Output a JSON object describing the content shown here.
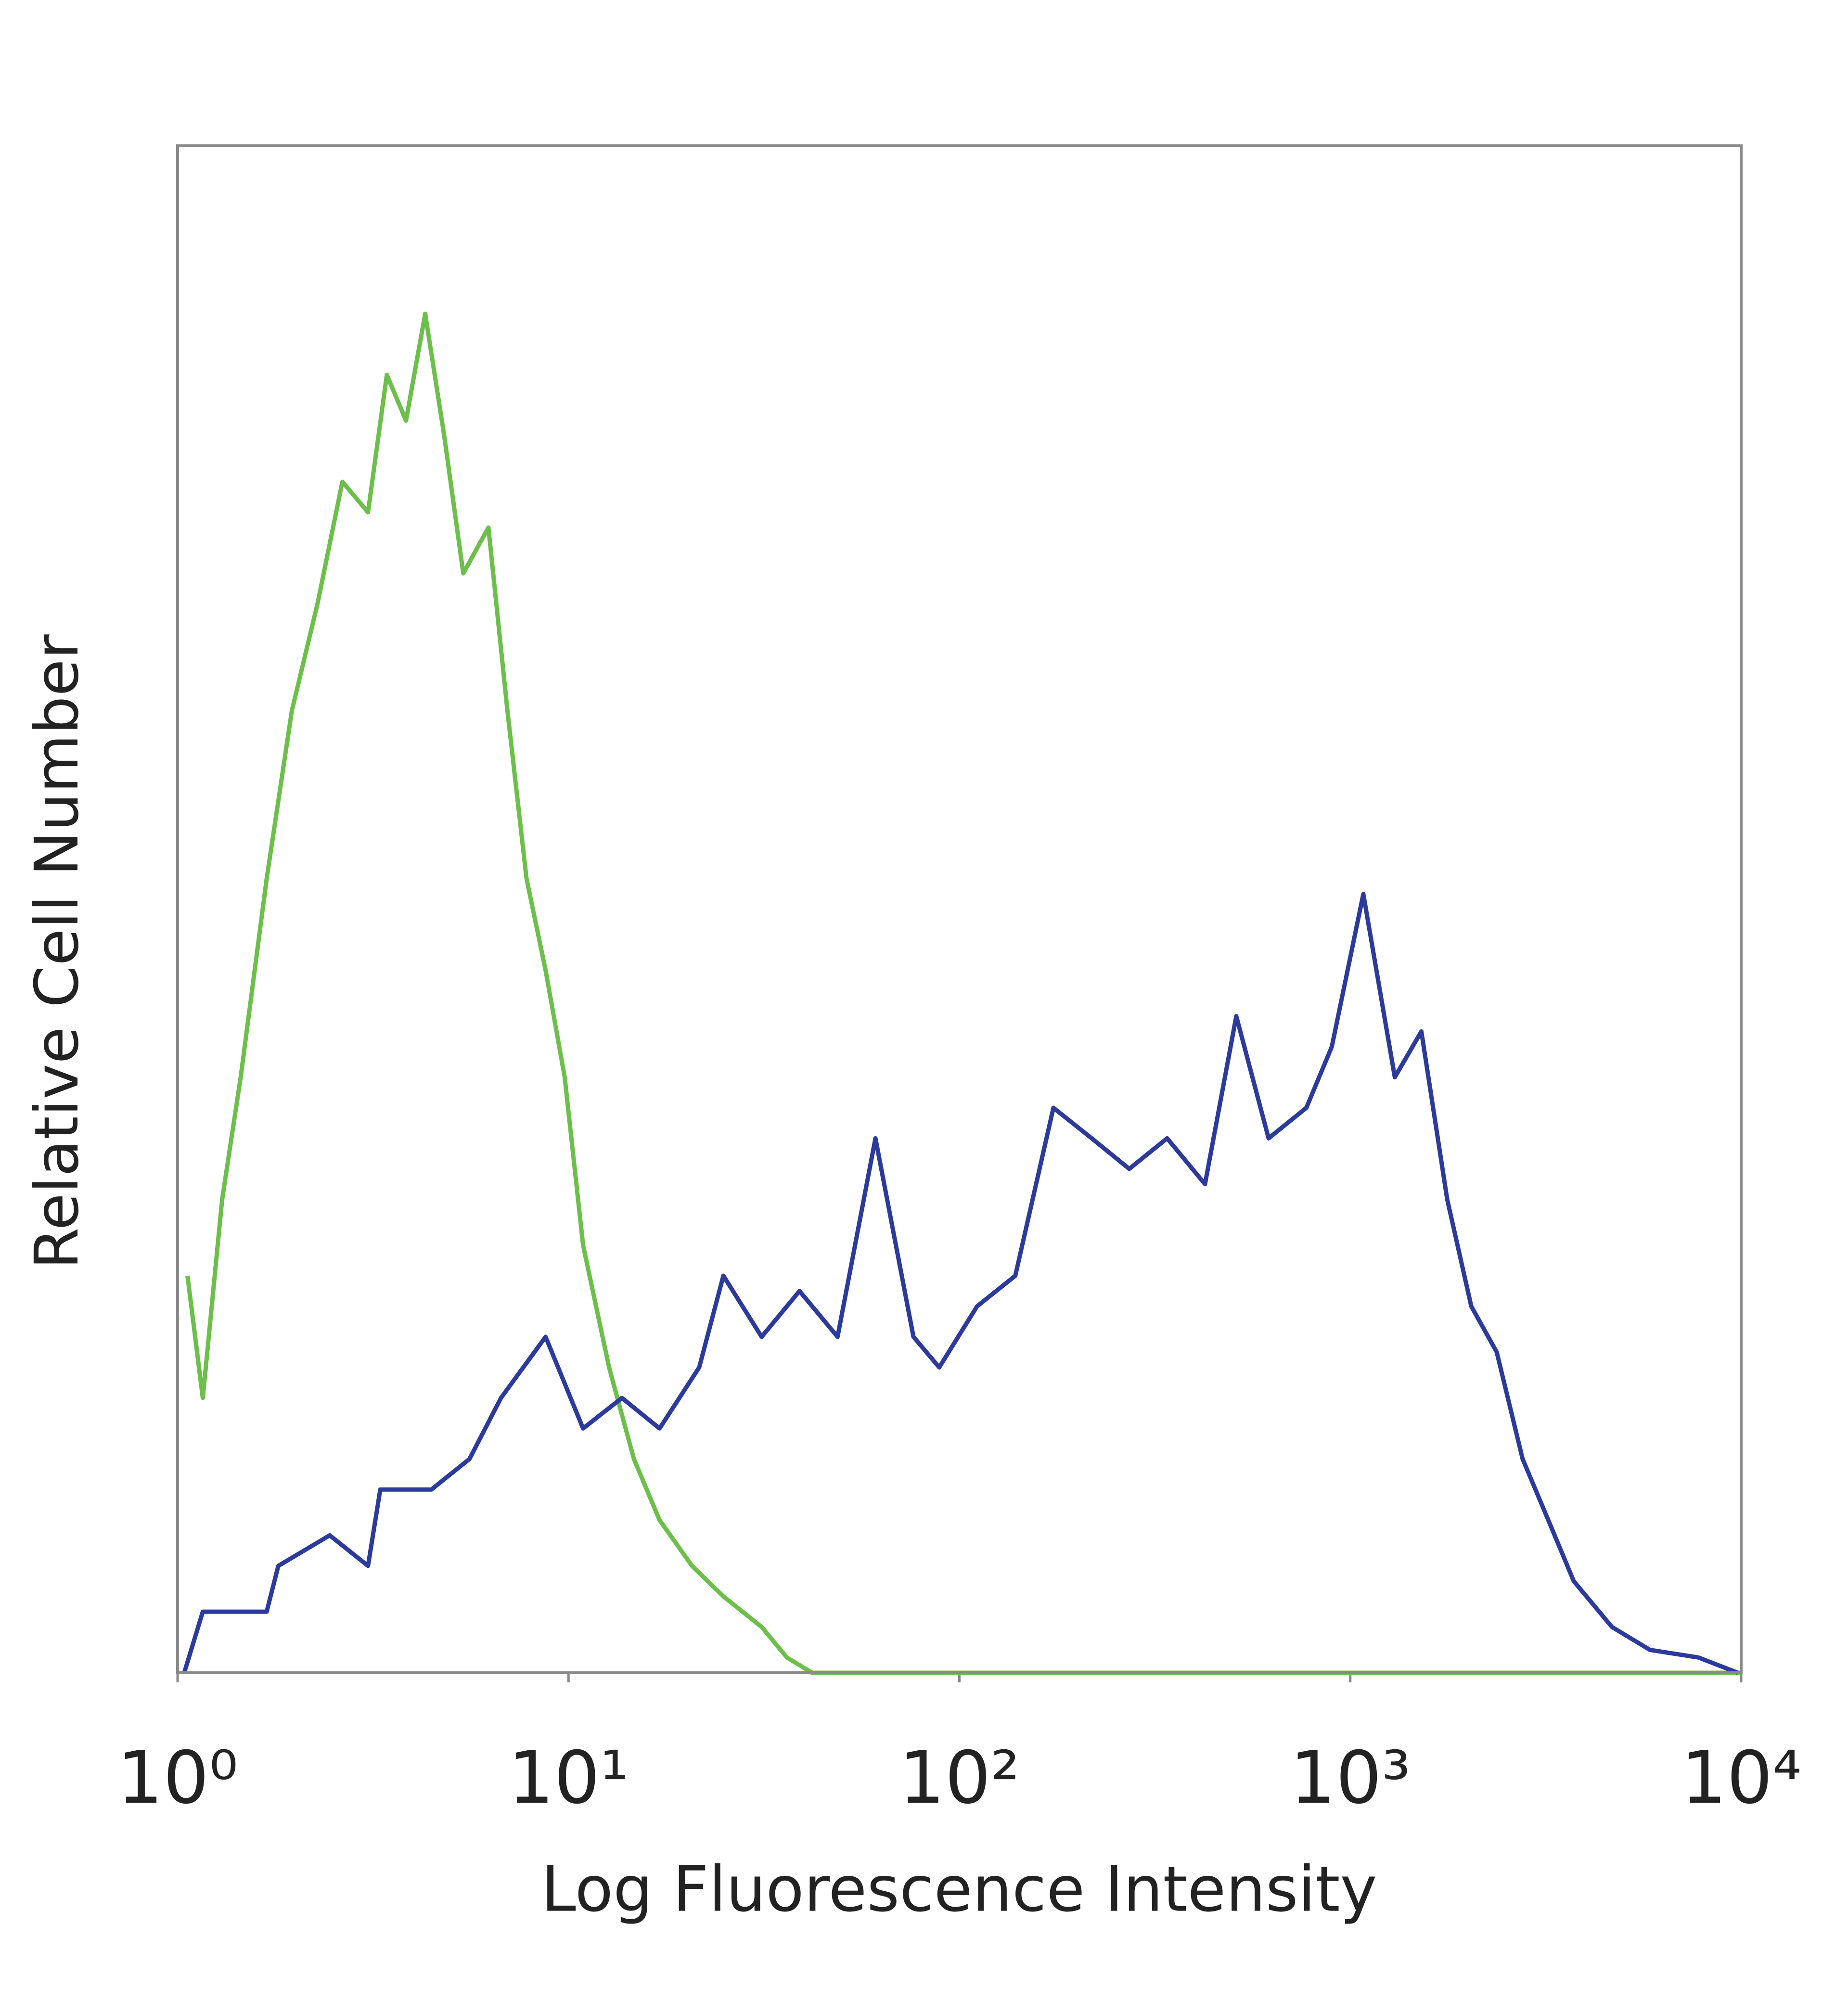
{
  "chart_data": {
    "type": "line",
    "x_label": "Log Fluorescence Intensity",
    "y_label": "Relative Cell Number",
    "log_x": true,
    "xlim": [
      1,
      10000
    ],
    "xticks": [
      {
        "value": 1,
        "label": "10⁰"
      },
      {
        "value": 10,
        "label": "10¹"
      },
      {
        "value": 100,
        "label": "10²"
      },
      {
        "value": 1000,
        "label": "10³"
      },
      {
        "value": 10000,
        "label": "10⁴"
      }
    ],
    "ylim": [
      0,
      100
    ],
    "series": [
      {
        "color": "#6cc04a",
        "x": [
          1.06,
          1.16,
          1.3,
          1.45,
          1.69,
          1.96,
          2.28,
          2.64,
          3.07,
          3.43,
          3.84,
          4.3,
          4.81,
          5.38,
          6.24,
          6.98,
          7.81,
          8.74,
          9.78,
          10.9,
          12.7,
          14.7,
          17.1,
          20.7,
          24.9,
          31.2,
          36.2,
          42,
          10000
        ],
        "values": [
          26,
          18,
          31,
          39,
          52,
          63,
          70,
          78,
          76,
          85,
          82,
          89,
          81,
          72,
          75,
          63,
          52,
          46,
          39,
          28,
          20,
          14,
          10,
          7,
          5,
          3,
          1,
          0,
          0
        ]
      },
      {
        "color": "#2b3a9c",
        "x": [
          1.04,
          1.16,
          1.69,
          1.81,
          2.45,
          3.07,
          3.3,
          4.46,
          5.58,
          6.72,
          8.74,
          10.9,
          13.7,
          17.1,
          21.6,
          24.9,
          31.2,
          39,
          48.8,
          61,
          76.3,
          88.8,
          111,
          139,
          174,
          218,
          272,
          340,
          425,
          511,
          618,
          772,
          897,
          1080,
          1300,
          1520,
          1770,
          2040,
          2370,
          2760,
          3210,
          3730,
          4670,
          5840,
          7780,
          9800
        ],
        "values": [
          0,
          4,
          4,
          7,
          9,
          7,
          12,
          12,
          14,
          18,
          22,
          16,
          18,
          16,
          20,
          26,
          22,
          25,
          22,
          35,
          22,
          20,
          24,
          26,
          37,
          35,
          33,
          35,
          32,
          43,
          35,
          37,
          41,
          51,
          39,
          42,
          31,
          24,
          21,
          14,
          10,
          6,
          3,
          1.5,
          1,
          0
        ]
      }
    ]
  }
}
